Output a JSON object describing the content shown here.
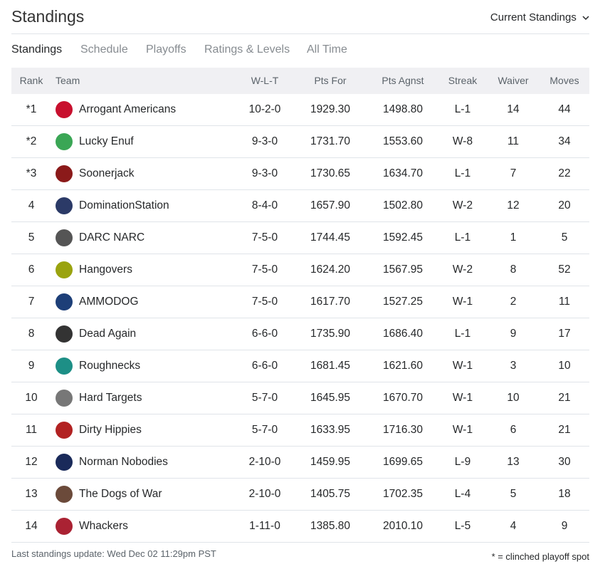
{
  "header": {
    "title": "Standings",
    "dropdown": "Current Standings"
  },
  "tabs": [
    "Standings",
    "Schedule",
    "Playoffs",
    "Ratings & Levels",
    "All Time"
  ],
  "table": {
    "columns": [
      "Rank",
      "Team",
      "W-L-T",
      "Pts For",
      "Pts Agnst",
      "Streak",
      "Waiver",
      "Moves"
    ],
    "rows": [
      [
        "*1",
        "Arrogant Americans",
        "10-2-0",
        "1929.30",
        "1498.80",
        "L-1",
        "14",
        "44"
      ],
      [
        "*2",
        "Lucky Enuf",
        "9-3-0",
        "1731.70",
        "1553.60",
        "W-8",
        "11",
        "34"
      ],
      [
        "*3",
        "Soonerjack",
        "9-3-0",
        "1730.65",
        "1634.70",
        "L-1",
        "7",
        "22"
      ],
      [
        "4",
        "DominationStation",
        "8-4-0",
        "1657.90",
        "1502.80",
        "W-2",
        "12",
        "20"
      ],
      [
        "5",
        "DARC NARC",
        "7-5-0",
        "1744.45",
        "1592.45",
        "L-1",
        "1",
        "5"
      ],
      [
        "6",
        "Hangovers",
        "7-5-0",
        "1624.20",
        "1567.95",
        "W-2",
        "8",
        "52"
      ],
      [
        "7",
        "AMMODOG",
        "7-5-0",
        "1617.70",
        "1527.25",
        "W-1",
        "2",
        "11"
      ],
      [
        "8",
        "Dead Again",
        "6-6-0",
        "1735.90",
        "1686.40",
        "L-1",
        "9",
        "17"
      ],
      [
        "9",
        "Roughnecks",
        "6-6-0",
        "1681.45",
        "1621.60",
        "W-1",
        "3",
        "10"
      ],
      [
        "10",
        "Hard Targets",
        "5-7-0",
        "1645.95",
        "1670.70",
        "W-1",
        "10",
        "21"
      ],
      [
        "11",
        "Dirty Hippies",
        "5-7-0",
        "1633.95",
        "1716.30",
        "W-1",
        "6",
        "21"
      ],
      [
        "12",
        "Norman Nobodies",
        "2-10-0",
        "1459.95",
        "1699.65",
        "L-9",
        "13",
        "30"
      ],
      [
        "13",
        "The Dogs of War",
        "2-10-0",
        "1405.75",
        "1702.35",
        "L-4",
        "5",
        "18"
      ],
      [
        "14",
        "Whackers",
        "1-11-0",
        "1385.80",
        "2010.10",
        "L-5",
        "4",
        "9"
      ]
    ]
  },
  "footer": {
    "last_update": "Last standings update: Wed Dec 02 11:29pm PST",
    "note": "* = clinched playoff spot"
  }
}
